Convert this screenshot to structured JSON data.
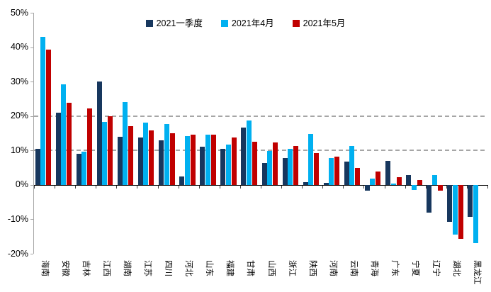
{
  "chart_data": {
    "type": "bar",
    "title": "",
    "xlabel": "",
    "ylabel": "",
    "ylim": [
      -20,
      50
    ],
    "legend_position": "top",
    "grid": "dashed horizontal lines at 10% and 20% only",
    "categories": [
      "海南",
      "安徽",
      "吉林",
      "江西",
      "湖南",
      "江苏",
      "四川",
      "河北",
      "山东",
      "福建",
      "甘肃",
      "山西",
      "浙江",
      "陕西",
      "河南",
      "云南",
      "青海",
      "广东",
      "宁夏",
      "辽宁",
      "湖北",
      "黑龙江"
    ],
    "series": [
      {
        "name": "2021一季度",
        "color": "#17375E",
        "values": [
          10.5,
          21,
          9,
          30,
          14,
          13.8,
          13,
          2.4,
          11,
          10.5,
          16.6,
          6.3,
          7.8,
          0.7,
          0.5,
          6.7,
          -1.4,
          7,
          2.8,
          -7.9,
          -10.5,
          -9
        ]
      },
      {
        "name": "2021年4月",
        "color": "#00B0F0",
        "values": [
          43,
          29.2,
          9.7,
          18.3,
          24,
          18,
          17.7,
          14.2,
          14.6,
          11.7,
          18.7,
          9.8,
          10.4,
          14.8,
          7.7,
          11.3,
          1.8,
          0.3,
          -1.2,
          2.8,
          -14.2,
          -16.8
        ]
      },
      {
        "name": "2021年5月",
        "color": "#C00000",
        "values": [
          39.2,
          23.9,
          22.2,
          20,
          17,
          15.8,
          15,
          14.6,
          14.6,
          13.8,
          12.5,
          12.3,
          11.2,
          9.3,
          8.2,
          5,
          3.8,
          2.3,
          1.4,
          -1.4,
          -15.4,
          null
        ]
      }
    ],
    "yticks": [
      {
        "value": 50,
        "label": "50%"
      },
      {
        "value": 40,
        "label": "40%"
      },
      {
        "value": 30,
        "label": "30%"
      },
      {
        "value": 20,
        "label": "20%"
      },
      {
        "value": 10,
        "label": "10%"
      },
      {
        "value": 0,
        "label": "0%"
      },
      {
        "value": -10,
        "label": "-10%"
      },
      {
        "value": -20,
        "label": "-20%"
      }
    ],
    "gridlines_at": [
      20,
      10
    ],
    "colors": {
      "gridline": "#A6A6A6",
      "axis_spine": "#A6A6A6",
      "zero_line": "#000000",
      "x_tick": "#404040",
      "text": "#000000",
      "background": "#FFFFFF"
    }
  }
}
